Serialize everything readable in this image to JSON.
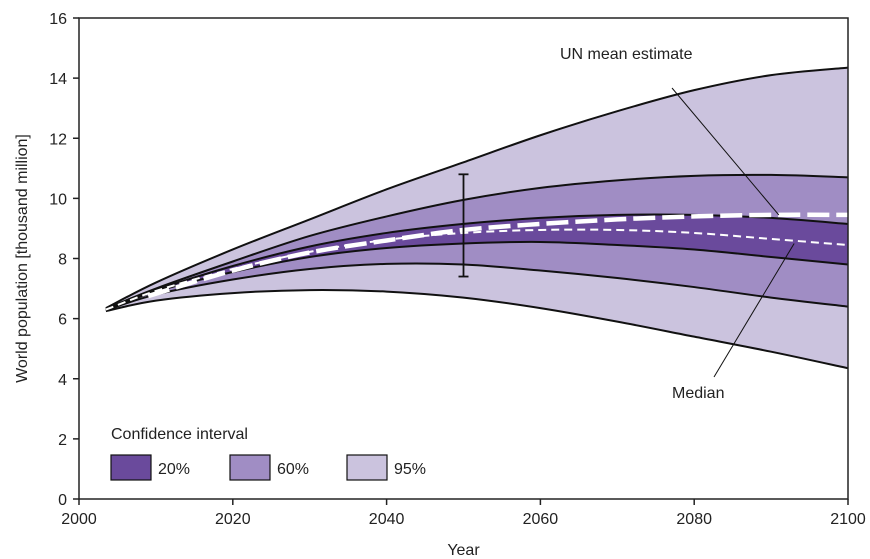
{
  "chart_data": {
    "type": "area",
    "title": "",
    "xlabel": "Year",
    "ylabel": "World population [thousand million]",
    "xlim": [
      2000,
      2100
    ],
    "ylim": [
      0,
      16
    ],
    "x_ticks": [
      2000,
      2020,
      2040,
      2060,
      2080,
      2100
    ],
    "y_ticks": [
      0,
      2,
      4,
      6,
      8,
      10,
      12,
      14,
      16
    ],
    "grid": false,
    "x": [
      2003.5,
      2010,
      2020,
      2030,
      2040,
      2050,
      2060,
      2070,
      2080,
      2090,
      2100
    ],
    "bands": [
      {
        "name": "95%",
        "color": "#cbc3de",
        "lower": [
          6.25,
          6.6,
          6.85,
          6.95,
          6.9,
          6.7,
          6.35,
          5.9,
          5.4,
          4.9,
          4.35
        ],
        "upper": [
          6.35,
          7.2,
          8.3,
          9.3,
          10.3,
          11.2,
          12.1,
          12.9,
          13.6,
          14.1,
          14.35
        ]
      },
      {
        "name": "60%",
        "color": "#a08dc4",
        "lower": [
          6.28,
          6.8,
          7.3,
          7.65,
          7.82,
          7.8,
          7.6,
          7.35,
          7.05,
          6.7,
          6.4
        ],
        "upper": [
          6.33,
          7.0,
          7.9,
          8.75,
          9.4,
          9.95,
          10.35,
          10.6,
          10.75,
          10.78,
          10.7
        ]
      },
      {
        "name": "20%",
        "color": "#6a4a9c",
        "lower": [
          6.3,
          6.9,
          7.55,
          8.05,
          8.35,
          8.5,
          8.55,
          8.45,
          8.3,
          8.05,
          7.8
        ],
        "upper": [
          6.32,
          6.95,
          7.75,
          8.4,
          8.85,
          9.15,
          9.35,
          9.45,
          9.45,
          9.35,
          9.15
        ]
      }
    ],
    "series": [
      {
        "name": "Median",
        "style": "dashed-thin",
        "color": "#ffffff",
        "values": [
          6.3,
          6.92,
          7.65,
          8.22,
          8.62,
          8.85,
          8.95,
          8.95,
          8.85,
          8.65,
          8.45
        ]
      },
      {
        "name": "UN mean estimate",
        "style": "dashed-thick",
        "color": "#ffffff",
        "x": [
          2009,
          2020,
          2030,
          2040,
          2050,
          2060,
          2070,
          2080,
          2090,
          2100
        ],
        "values": [
          6.75,
          7.6,
          8.2,
          8.6,
          8.95,
          9.15,
          9.3,
          9.4,
          9.45,
          9.45
        ]
      }
    ],
    "error_bar": {
      "x": 2050,
      "low": 7.4,
      "high": 10.8
    },
    "annotations": [
      {
        "text": "UN mean estimate",
        "target_x": 2091,
        "target_y": 9.45
      },
      {
        "text": "Median",
        "target_x": 2093,
        "target_y": 8.5
      }
    ],
    "legend": {
      "title": "Confidence interval",
      "placement": "bottom-left",
      "entries": [
        {
          "label": "20%",
          "color": "#6a4a9c"
        },
        {
          "label": "60%",
          "color": "#a08dc4"
        },
        {
          "label": "95%",
          "color": "#cbc3de"
        }
      ]
    }
  }
}
